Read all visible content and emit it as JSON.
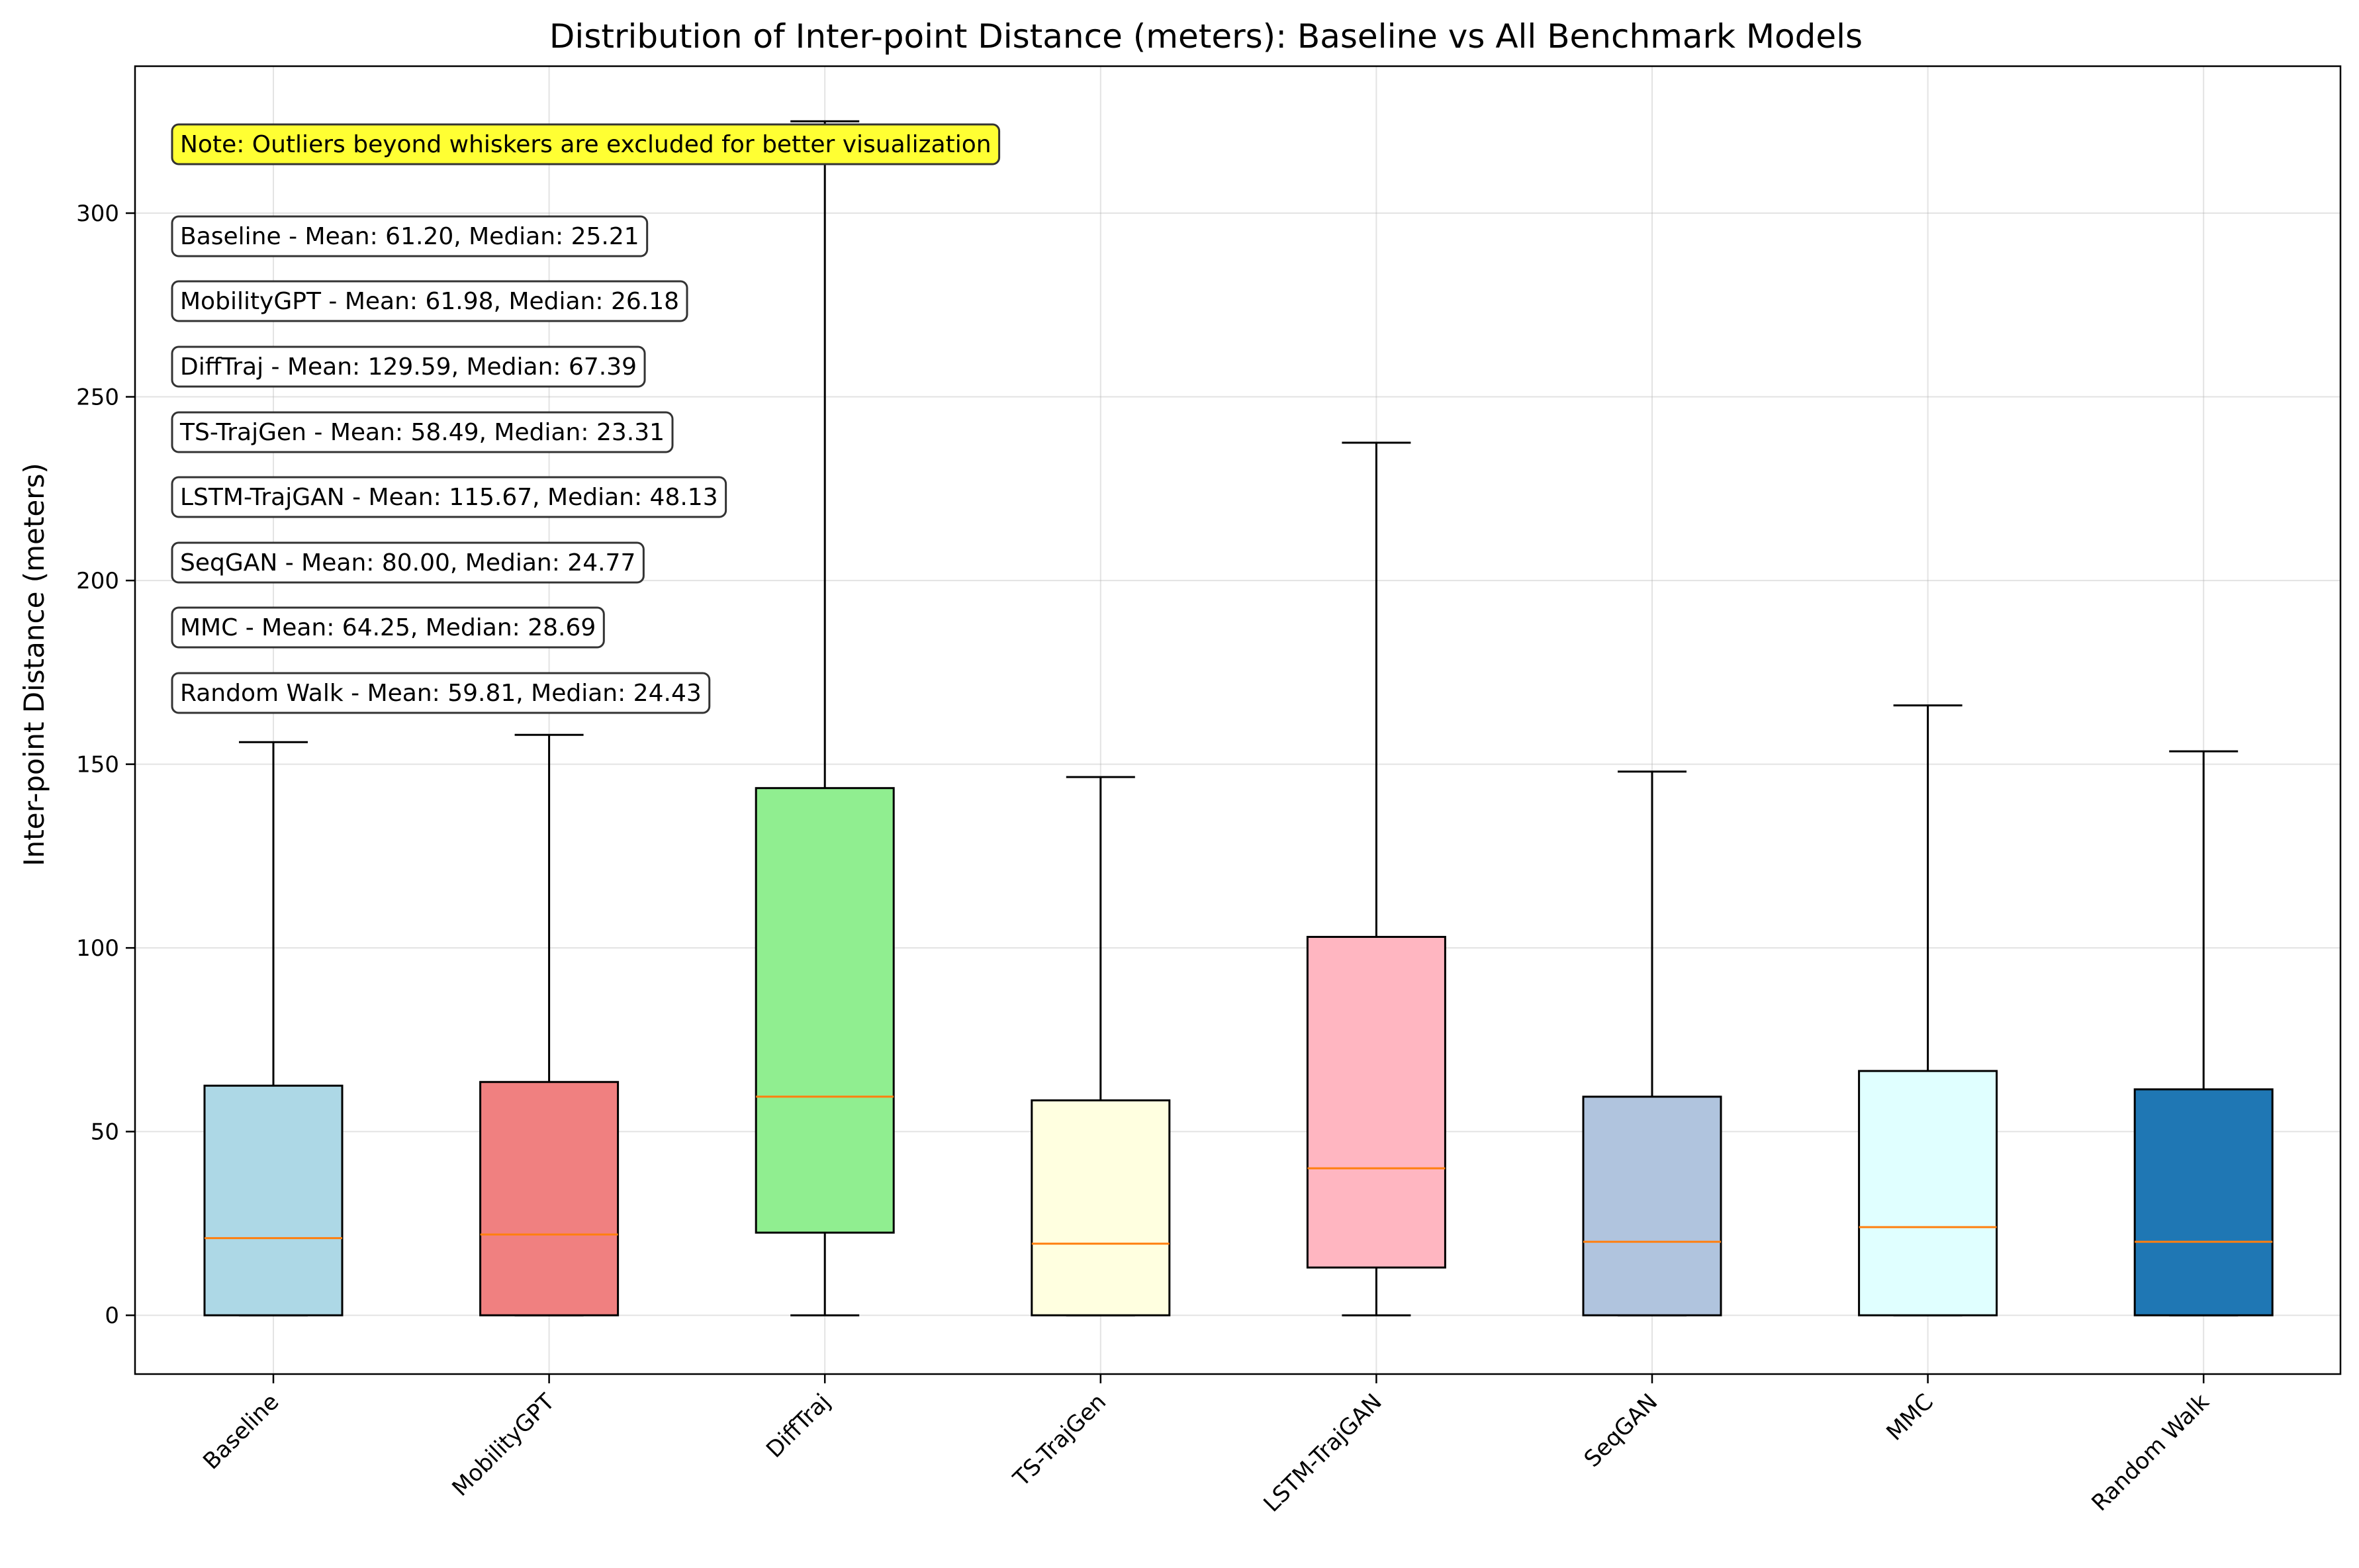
{
  "chart_data": {
    "type": "box",
    "title": "Distribution of Inter-point Distance (meters): Baseline vs All Benchmark Models",
    "xlabel": "",
    "ylabel": "Inter-point Distance (meters)",
    "ylim": [
      -16,
      340
    ],
    "yticks": [
      0,
      50,
      100,
      150,
      200,
      250,
      300
    ],
    "grid": true,
    "categories": [
      "Baseline",
      "MobilityGPT",
      "DiffTraj",
      "TS-TrajGen",
      "LSTM-TrajGAN",
      "SeqGAN",
      "MMC",
      "Random Walk"
    ],
    "boxes": [
      {
        "name": "Baseline",
        "whislo": 0,
        "q1": 0,
        "median": 21,
        "q3": 62.5,
        "whishi": 156,
        "color": "#add8e6"
      },
      {
        "name": "MobilityGPT",
        "whislo": 0,
        "q1": 0,
        "median": 22,
        "q3": 63.5,
        "whishi": 158,
        "color": "#f08080"
      },
      {
        "name": "DiffTraj",
        "whislo": 0,
        "q1": 22.5,
        "median": 59.5,
        "q3": 143.5,
        "whishi": 325,
        "color": "#90ee90"
      },
      {
        "name": "TS-TrajGen",
        "whislo": 0,
        "q1": 0,
        "median": 19.5,
        "q3": 58.5,
        "whishi": 146.5,
        "color": "#ffffe0"
      },
      {
        "name": "LSTM-TrajGAN",
        "whislo": 0,
        "q1": 13,
        "median": 40,
        "q3": 103,
        "whishi": 237.5,
        "color": "#ffb6c1"
      },
      {
        "name": "SeqGAN",
        "whislo": 0,
        "q1": 0,
        "median": 20,
        "q3": 59.5,
        "whishi": 148,
        "color": "#b0c4de"
      },
      {
        "name": "MMC",
        "whislo": 0,
        "q1": 0,
        "median": 24,
        "q3": 66.5,
        "whishi": 166,
        "color": "#e0ffff"
      },
      {
        "name": "Random Walk",
        "whislo": 0,
        "q1": 0,
        "median": 20,
        "q3": 61.5,
        "whishi": 153.5,
        "color": "#1f77b4"
      }
    ],
    "median_color": "#ff7f0e",
    "note": "Note: Outliers beyond whiskers are excluded for better visualization",
    "note_color": "#ffff33",
    "stats": [
      "Baseline - Mean: 61.20, Median: 25.21",
      "MobilityGPT - Mean: 61.98, Median: 26.18",
      "DiffTraj - Mean: 129.59, Median: 67.39",
      "TS-TrajGen - Mean: 58.49, Median: 23.31",
      "LSTM-TrajGAN - Mean: 115.67, Median: 48.13",
      "SeqGAN - Mean: 80.00, Median: 24.77",
      "MMC - Mean: 64.25, Median: 28.69",
      "Random Walk - Mean: 59.81, Median: 24.43"
    ]
  }
}
